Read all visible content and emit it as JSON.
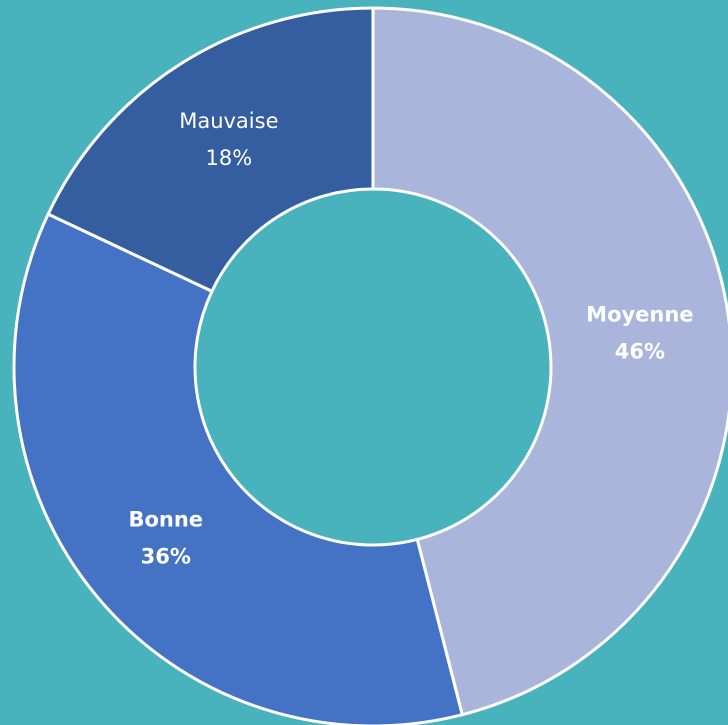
{
  "chart_data": {
    "type": "donut",
    "categories": [
      "Moyenne",
      "Bonne",
      "Mauvaise"
    ],
    "values": [
      46,
      36,
      18
    ],
    "value_labels": [
      "46%",
      "36%",
      "18%"
    ],
    "colors": [
      "#a9b5da",
      "#4472c4",
      "#345ea0"
    ]
  }
}
